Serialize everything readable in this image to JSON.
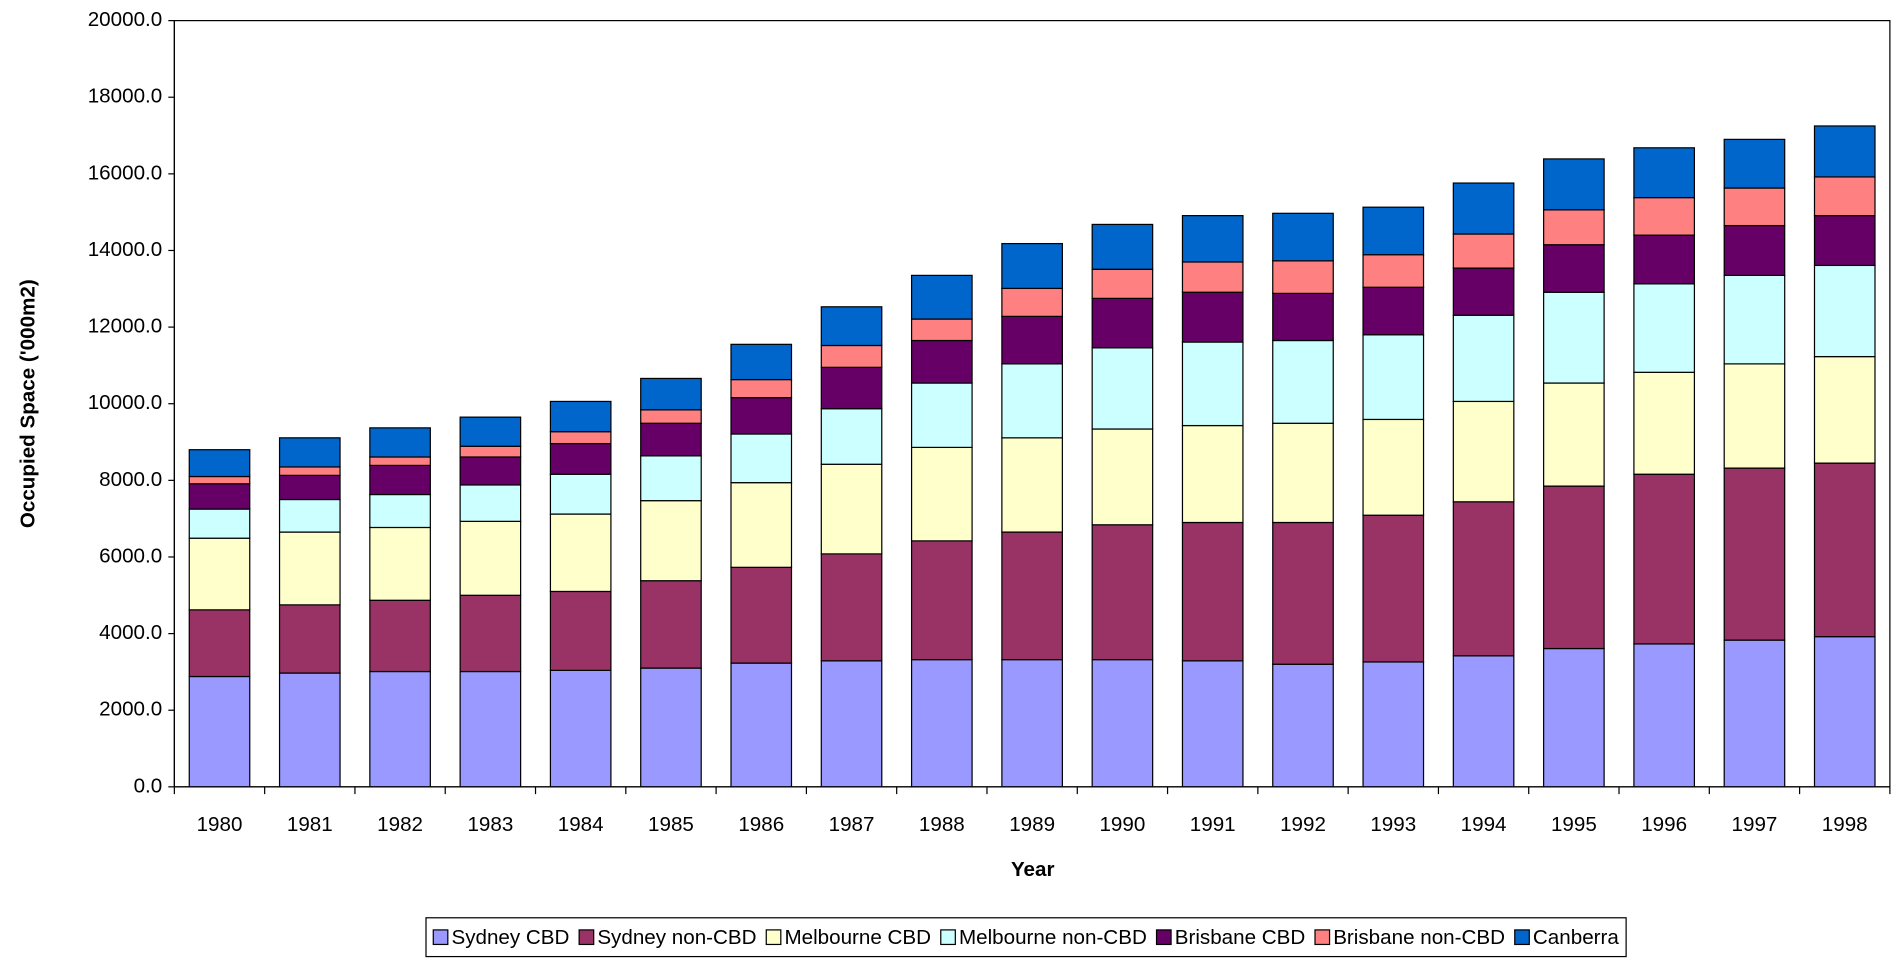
{
  "chart_data": {
    "type": "stacked-bar",
    "x_label": "Year",
    "y_label": "Occupied Space ('000m2)",
    "categories": [
      "1980",
      "1981",
      "1982",
      "1983",
      "1984",
      "1985",
      "1986",
      "1987",
      "1988",
      "1989",
      "1990",
      "1991",
      "1992",
      "1993",
      "1994",
      "1995",
      "1996",
      "1997",
      "1998"
    ],
    "series": [
      {
        "name": "Sydney CBD",
        "color": "#9999ff",
        "values": [
          2880,
          2970,
          3010,
          3010,
          3040,
          3100,
          3230,
          3290,
          3320,
          3320,
          3320,
          3290,
          3200,
          3260,
          3420,
          3610,
          3730,
          3830,
          3920
        ]
      },
      {
        "name": "Sydney non-CBD",
        "color": "#993366",
        "values": [
          1740,
          1780,
          1860,
          1990,
          2060,
          2280,
          2500,
          2790,
          3100,
          3330,
          3520,
          3610,
          3700,
          3830,
          4020,
          4240,
          4430,
          4490,
          4530
        ]
      },
      {
        "name": "Melbourne CBD",
        "color": "#ffffcc",
        "values": [
          1870,
          1900,
          1900,
          1930,
          2020,
          2090,
          2210,
          2340,
          2440,
          2460,
          2500,
          2530,
          2590,
          2500,
          2620,
          2690,
          2660,
          2720,
          2780
        ]
      },
      {
        "name": "Melbourne non-CBD",
        "color": "#ccffff",
        "values": [
          760,
          850,
          860,
          950,
          1040,
          1170,
          1270,
          1450,
          1680,
          1930,
          2120,
          2180,
          2160,
          2210,
          2250,
          2370,
          2310,
          2310,
          2380
        ]
      },
      {
        "name": "Brisbane CBD",
        "color": "#660066",
        "values": [
          660,
          630,
          760,
          730,
          800,
          850,
          950,
          1080,
          1110,
          1240,
          1290,
          1300,
          1230,
          1240,
          1230,
          1240,
          1270,
          1300,
          1300
        ]
      },
      {
        "name": "Brisbane non-CBD",
        "color": "#ff8080",
        "values": [
          190,
          220,
          220,
          280,
          310,
          350,
          470,
          570,
          560,
          730,
          760,
          790,
          850,
          850,
          890,
          910,
          980,
          980,
          1010
        ]
      },
      {
        "name": "Canberra",
        "color": "#0066cc",
        "values": [
          700,
          760,
          760,
          760,
          790,
          820,
          920,
          1010,
          1140,
          1170,
          1170,
          1210,
          1240,
          1240,
          1330,
          1330,
          1300,
          1270,
          1330
        ]
      }
    ],
    "ylim": [
      0,
      20000
    ],
    "yticks": [
      {
        "value": 0,
        "label": "0.0"
      },
      {
        "value": 2000,
        "label": "2000.0"
      },
      {
        "value": 4000,
        "label": "4000.0"
      },
      {
        "value": 6000,
        "label": "6000.0"
      },
      {
        "value": 8000,
        "label": "8000.0"
      },
      {
        "value": 10000,
        "label": "10000.0"
      },
      {
        "value": 12000,
        "label": "12000.0"
      },
      {
        "value": 14000,
        "label": "14000.0"
      },
      {
        "value": 16000,
        "label": "16000.0"
      },
      {
        "value": 18000,
        "label": "18000.0"
      },
      {
        "value": 20000,
        "label": "20000.0"
      }
    ],
    "legend": "bottom"
  }
}
